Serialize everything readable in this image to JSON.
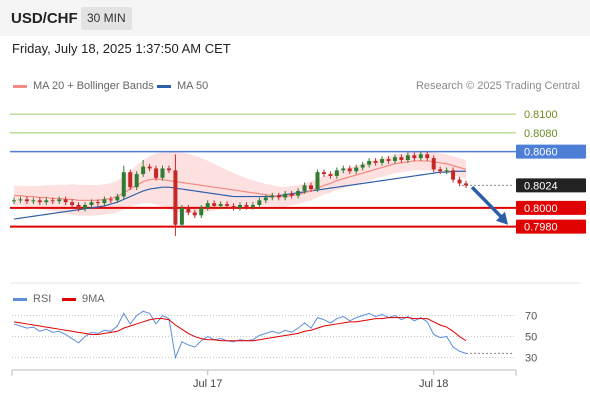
{
  "header": {
    "pair": "USD/CHF",
    "timeframe": "30 MIN"
  },
  "datetime": "Friday, July 18, 2025 1:37:50 AM CET",
  "legend": {
    "ma20": "MA 20 + Bollinger Bands",
    "ma50": "MA 50",
    "rsi": "RSI",
    "ma9": "9MA"
  },
  "copyright": "Research © 2025 Trading Central",
  "colors": {
    "ma20": "#f28b82",
    "ma50": "#2f5fa8",
    "bollinger": "#fcd9d9",
    "resistance_green": "#9ccc65",
    "pivot_blue": "#4d7fd6",
    "support_red": "#e00000",
    "last_price": "#222222",
    "candle_up": "#2e7d32",
    "candle_down": "#c62828",
    "rsi": "#5b8fdc",
    "ma9": "#e00000",
    "arrow": "#2a5ea8"
  },
  "chart_data": [
    {
      "type": "candlestick",
      "title": "USD/CHF",
      "x_ticks": [
        "Jul 17",
        "Jul 18"
      ],
      "ylim": [
        0.7955,
        0.8115
      ],
      "levels": [
        {
          "value": 0.81,
          "label": "0.8100",
          "kind": "resistance"
        },
        {
          "value": 0.808,
          "label": "0.8080",
          "kind": "resistance"
        },
        {
          "value": 0.806,
          "label": "0.8060",
          "kind": "pivot"
        },
        {
          "value": 0.8024,
          "label": "0.8024",
          "kind": "last"
        },
        {
          "value": 0.8,
          "label": "0.8000",
          "kind": "support"
        },
        {
          "value": 0.798,
          "label": "0.7980",
          "kind": "support"
        }
      ],
      "forecast": {
        "from": 0.8022,
        "to": 0.7982,
        "direction": "down"
      },
      "close": [
        0.8008,
        0.8009,
        0.8007,
        0.8008,
        0.8006,
        0.8008,
        0.8007,
        0.8009,
        0.8006,
        0.8003,
        0.7999,
        0.8003,
        0.8006,
        0.8005,
        0.8009,
        0.8008,
        0.8012,
        0.8038,
        0.8022,
        0.8036,
        0.8044,
        0.8042,
        0.8032,
        0.8042,
        0.804,
        0.7982,
        0.8,
        0.7995,
        0.7992,
        0.8,
        0.8005,
        0.8002,
        0.8004,
        0.8002,
        0.8,
        0.8003,
        0.8001,
        0.8003,
        0.8008,
        0.8011,
        0.8013,
        0.8011,
        0.8015,
        0.8013,
        0.8018,
        0.8024,
        0.802,
        0.8038,
        0.8036,
        0.8034,
        0.804,
        0.8042,
        0.8039,
        0.8043,
        0.8046,
        0.805,
        0.8048,
        0.8052,
        0.805,
        0.8054,
        0.8051,
        0.8056,
        0.8053,
        0.8057,
        0.8053,
        0.8041,
        0.8039,
        0.804,
        0.803,
        0.8026,
        0.8024
      ],
      "ma20": [
        0.8013,
        0.8013,
        0.8012,
        0.8012,
        0.8011,
        0.8011,
        0.801,
        0.801,
        0.8009,
        0.8009,
        0.8008,
        0.8008,
        0.8008,
        0.8008,
        0.8009,
        0.801,
        0.8012,
        0.8016,
        0.802,
        0.8024,
        0.8028,
        0.803,
        0.8031,
        0.803,
        0.8029,
        0.8028,
        0.8027,
        0.8026,
        0.8025,
        0.8024,
        0.8023,
        0.8022,
        0.8021,
        0.802,
        0.8019,
        0.8018,
        0.8017,
        0.8016,
        0.8015,
        0.8014,
        0.8013,
        0.8012,
        0.8012,
        0.8013,
        0.8014,
        0.8016,
        0.8018,
        0.8021,
        0.8024,
        0.8026,
        0.8029,
        0.8031,
        0.8033,
        0.8035,
        0.8037,
        0.8039,
        0.8041,
        0.8043,
        0.8045,
        0.8047,
        0.8048,
        0.8049,
        0.805,
        0.805,
        0.805,
        0.8049,
        0.8048,
        0.8047,
        0.8045,
        0.8043,
        0.8041
      ],
      "ma50": [
        0.7988,
        0.7989,
        0.799,
        0.7991,
        0.7992,
        0.7993,
        0.7994,
        0.7995,
        0.7996,
        0.7997,
        0.7998,
        0.7999,
        0.8,
        0.8001,
        0.8002,
        0.8004,
        0.8006,
        0.8009,
        0.8012,
        0.8015,
        0.8018,
        0.802,
        0.8021,
        0.8022,
        0.8022,
        0.8021,
        0.802,
        0.8019,
        0.8018,
        0.8017,
        0.8016,
        0.8015,
        0.8014,
        0.8013,
        0.8012,
        0.8012,
        0.8012,
        0.8012,
        0.8012,
        0.8012,
        0.8012,
        0.8013,
        0.8014,
        0.8015,
        0.8016,
        0.8017,
        0.8018,
        0.8019,
        0.802,
        0.8021,
        0.8022,
        0.8023,
        0.8024,
        0.8025,
        0.8026,
        0.8027,
        0.8028,
        0.8029,
        0.803,
        0.8031,
        0.8032,
        0.8033,
        0.8034,
        0.8035,
        0.8036,
        0.8037,
        0.8038,
        0.8038,
        0.8039,
        0.8039,
        0.8039
      ]
    },
    {
      "type": "line",
      "title": "RSI",
      "y_ticks": [
        70,
        50,
        30
      ],
      "ylim": [
        22,
        80
      ],
      "series": [
        {
          "name": "RSI",
          "values": [
            62,
            60,
            58,
            59,
            55,
            57,
            54,
            55,
            52,
            48,
            44,
            50,
            54,
            53,
            56,
            55,
            60,
            72,
            62,
            70,
            74,
            72,
            62,
            70,
            67,
            30,
            45,
            42,
            40,
            46,
            50,
            47,
            48,
            46,
            45,
            47,
            46,
            47,
            51,
            53,
            55,
            53,
            56,
            54,
            58,
            63,
            58,
            68,
            66,
            63,
            67,
            69,
            65,
            68,
            70,
            72,
            69,
            71,
            68,
            70,
            66,
            69,
            65,
            68,
            64,
            52,
            49,
            50,
            40,
            36,
            34
          ]
        },
        {
          "name": "9MA",
          "values": [
            64,
            63,
            62,
            61,
            60,
            59,
            58,
            57,
            56,
            55,
            54,
            53,
            52,
            52,
            53,
            54,
            55,
            58,
            60,
            62,
            64,
            66,
            67,
            67,
            66,
            61,
            57,
            53,
            50,
            48,
            47,
            47,
            46,
            46,
            46,
            46,
            46,
            46,
            47,
            48,
            49,
            50,
            51,
            52,
            53,
            55,
            56,
            58,
            60,
            61,
            62,
            63,
            64,
            64,
            65,
            66,
            67,
            67,
            68,
            68,
            68,
            68,
            67,
            67,
            67,
            64,
            61,
            59,
            55,
            50,
            46
          ]
        }
      ]
    }
  ]
}
